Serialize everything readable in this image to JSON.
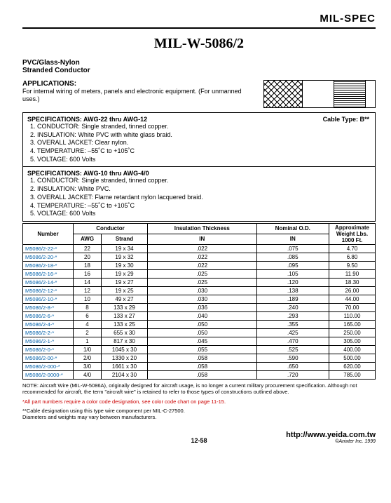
{
  "header": {
    "brand": "MIL-SPEC"
  },
  "title": "MIL-W-5086/2",
  "subtitle": [
    "PVC/Glass-Nylon",
    "Stranded Conductor"
  ],
  "applications": {
    "heading": "APPLICATIONS:",
    "body": "For internal wiring of meters, panels and electronic equipment. (For unmanned uses.)"
  },
  "cable_type_label": "Cable Type: B**",
  "specs": [
    {
      "title": "SPECIFICATIONS: AWG-22 thru AWG-12",
      "items": [
        "1.  CONDUCTOR: Single stranded, tinned copper.",
        "2.  INSULATION: White PVC with white glass braid.",
        "3.  OVERALL JACKET: Clear nylon.",
        "4.  TEMPERATURE: –55˚C to +105˚C",
        "5.  VOLTAGE: 600 Volts"
      ]
    },
    {
      "title": "SPECIFICATIONS: AWG-10 thru AWG-4/0",
      "items": [
        "1.  CONDUCTOR: Single stranded, tinned copper.",
        "2.  INSULATION: White PVC.",
        "3.  OVERALL JACKET: Flame retardant nylon lacquered braid.",
        "4.  TEMPERATURE: –55˚C to +105˚C",
        "5.  VOLTAGE: 600 Volts"
      ]
    }
  ],
  "table": {
    "header_groups": {
      "conductor": "Conductor",
      "insulation": "Insulation Thickness",
      "nominal": "Nominal O.D.",
      "weight": "Approximate\nWeight Lbs.\n1000 Ft."
    },
    "columns": [
      "Number",
      "AWG",
      "Strand",
      "IN",
      "IN",
      ""
    ],
    "rows": [
      [
        "M5086/2-22-*",
        "22",
        "19 x 34",
        ".022",
        ".075",
        "4.70"
      ],
      [
        "M5086/2-20-*",
        "20",
        "19 x 32",
        ".022",
        ".085",
        "6.80"
      ],
      [
        "M5086/2-18-*",
        "18",
        "19 x 30",
        ".022",
        ".095",
        "9.50"
      ],
      [
        "M5086/2-16-*",
        "16",
        "19 x 29",
        ".025",
        ".105",
        "11.90"
      ],
      [
        "M5086/2-14-*",
        "14",
        "19 x 27",
        ".025",
        ".120",
        "18.30"
      ],
      [
        "M5086/2-12-*",
        "12",
        "19 x 25",
        ".030",
        ".138",
        "26.00"
      ],
      [
        "M5086/2-10-*",
        "10",
        "49 x 27",
        ".030",
        ".189",
        "44.00"
      ],
      [
        "M5086/2-8-*",
        "8",
        "133 x 29",
        ".036",
        ".240",
        "70.00"
      ],
      [
        "M5086/2-6-*",
        "6",
        "133 x 27",
        ".040",
        ".293",
        "110.00"
      ],
      [
        "M5086/2-4-*",
        "4",
        "133 x 25",
        ".050",
        ".355",
        "165.00"
      ],
      [
        "M5086/2-2-*",
        "2",
        "655 x 30",
        ".050",
        ".425",
        "250.00"
      ],
      [
        "M5086/2-1-*",
        "1",
        "817 x 30",
        ".045",
        ".470",
        "305.00"
      ],
      [
        "M5086/2-0-*",
        "1/0",
        "1045 x 30",
        ".055",
        ".525",
        "400.00"
      ],
      [
        "M5086/2-00-*",
        "2/0",
        "1330 x 20",
        ".058",
        ".590",
        "500.00"
      ],
      [
        "M5086/2-000-*",
        "3/0",
        "1661 x 30",
        ".058",
        ".650",
        "620.00"
      ],
      [
        "M5086/2-0000-*",
        "4/0",
        "2104 x 30",
        ".058",
        ".720",
        "785.00"
      ]
    ]
  },
  "notes": {
    "main": "NOTE: Aircraft Wire (MIL-W-5086A), originally designed for aircraft usage, is no longer a current military procurement specification. Although not recommended for aircraft, the term \"aircraft wire\" is retained to refer to those types of constructions outlined above.",
    "red": "*All part numbers require a color code designation, see color code chart on page 11-15.",
    "extra": "**Cable designation using this type wire component per MIL-C-27500.\nDiameters and weights may vary between manufacturers."
  },
  "footer": {
    "url": "http://www.yeida.com.tw",
    "page": "12-58",
    "copyright": "©Anixter Inc. 1999"
  }
}
